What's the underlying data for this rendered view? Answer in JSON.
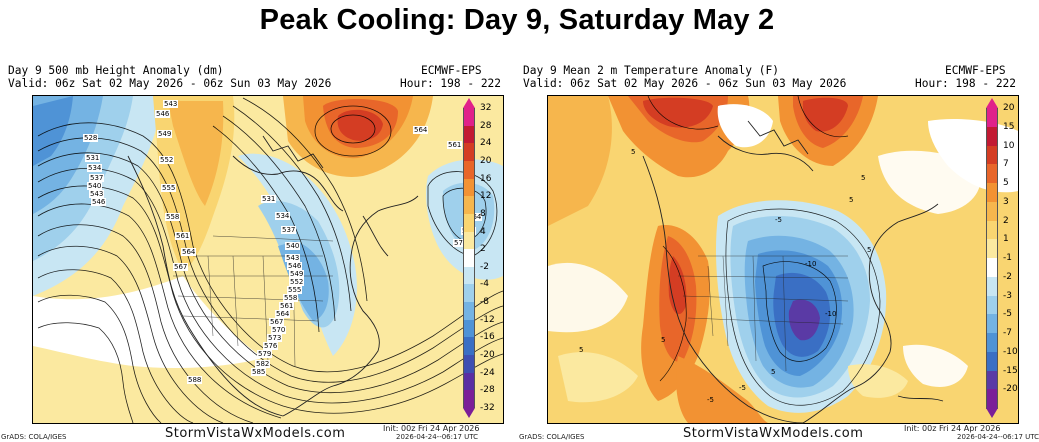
{
  "title": "Peak Cooling: Day 9, Saturday May 2",
  "left_panel": {
    "header_line1": "Day 9 500 mb Height Anomaly (dm)",
    "header_line2": "Valid: 06z Sat 02 May 2026 - 06z Sun 03 May 2026",
    "model": "ECMWF-EPS",
    "hour": "Hour: 198 - 222",
    "colorbar_labels": [
      "32",
      "28",
      "24",
      "20",
      "16",
      "12",
      "8",
      "4",
      "2",
      "-2",
      "-4",
      "-8",
      "-12",
      "-16",
      "-20",
      "-24",
      "-28",
      "-32"
    ],
    "contour_labels": [
      "528",
      "531",
      "534",
      "537",
      "540",
      "543",
      "546",
      "543",
      "546",
      "549",
      "552",
      "555",
      "558",
      "561",
      "564",
      "567",
      "531",
      "534",
      "537",
      "540",
      "543",
      "546",
      "549",
      "552",
      "555",
      "558",
      "561",
      "564",
      "567",
      "570",
      "573",
      "576",
      "579",
      "582",
      "585",
      "588",
      "564",
      "561",
      "564",
      "567",
      "570"
    ],
    "footer": "StormVistaWxModels.com",
    "init": "Init: 00z Fri 24 Apr 2026",
    "timestamp": "2026-04-24--06:17 UTC",
    "grads": "GrADS: COLA/IGES"
  },
  "right_panel": {
    "header_line1": "Day 9 Mean 2 m Temperature Anomaly (F)",
    "header_line2": "Valid: 06z Sat 02 May 2026 - 06z Sun 03 May 2026",
    "model": "ECMWF-EPS",
    "hour": "Hour: 198 - 222",
    "colorbar_labels": [
      "20",
      "15",
      "10",
      "7",
      "5",
      "3",
      "2",
      "1",
      "-1",
      "-2",
      "-3",
      "-5",
      "-7",
      "-10",
      "-15",
      "-20"
    ],
    "contour_labels": [
      "-10",
      "-10",
      "-5",
      "-5",
      "5",
      "5",
      "5",
      "5",
      "5",
      "-5",
      "5",
      "5"
    ],
    "footer": "StormVistaWxModels.com",
    "init": "Init: 00z Fri 24 Apr 2026",
    "timestamp": "2026-04-24--06:17 UTC",
    "grads": "GrADS: COLA/IGES"
  },
  "colors": {
    "height_scale": [
      "#e0218a",
      "#c21a33",
      "#d43d23",
      "#e8662a",
      "#f29233",
      "#f6b64d",
      "#f9d571",
      "#fbe9a0",
      "#ffffff",
      "#c8e6f3",
      "#9fd0ec",
      "#74b3e3",
      "#4f93d6",
      "#3a6fc4",
      "#3e4fb2",
      "#5a2fa3",
      "#7b1f98"
    ],
    "temp_scale": [
      "#e0218a",
      "#c21a33",
      "#d43d23",
      "#e8662a",
      "#f29233",
      "#f6b64d",
      "#f9d571",
      "#fbe9a0",
      "#ffffff",
      "#c8e6f3",
      "#9fd0ec",
      "#74b3e3",
      "#4f93d6",
      "#3a6fc4",
      "#5a3aa5",
      "#7b1f98"
    ]
  }
}
